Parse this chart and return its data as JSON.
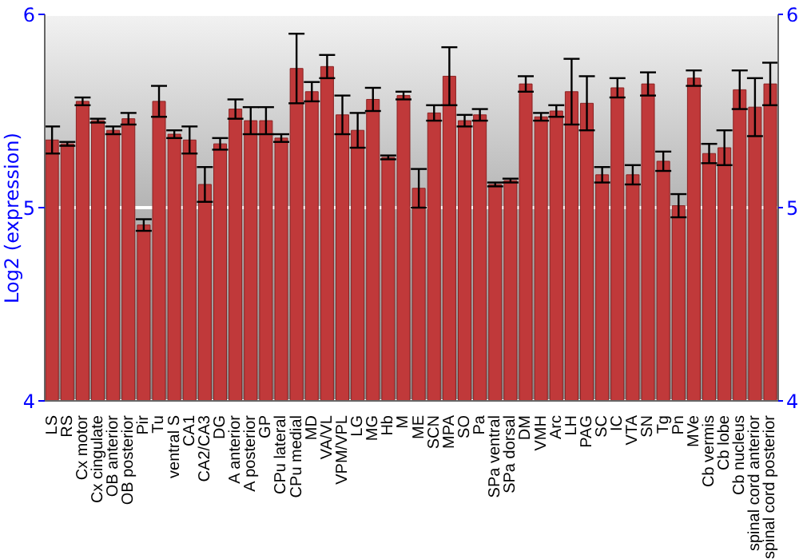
{
  "chart_data": {
    "type": "bar",
    "ylabel": "Log2 (expression)",
    "categories": [
      "LS",
      "RS",
      "Cx motor",
      "Cx cingulate",
      "OB anterior",
      "OB posterior",
      "Pir",
      "Tu",
      "ventral S",
      "CA1",
      "CA2/CA3",
      "DG",
      "A anterior",
      "A posterior",
      "GP",
      "CPu lateral",
      "CPu medial",
      "MD",
      "VA/VL",
      "VPM/VPL",
      "LG",
      "MG",
      "Hb",
      "M",
      "ME",
      "SCN",
      "MPA",
      "SO",
      "Pa",
      "SPa ventral",
      "SPa dorsal",
      "DM",
      "VMH",
      "Arc",
      "LH",
      "PAG",
      "SC",
      "IC",
      "VTA",
      "SN",
      "Tg",
      "Pn",
      "MVe",
      "Cb vermis",
      "Cb lobe",
      "Cb nucleus",
      "spinal cord anterior",
      "spinal cord posterior"
    ],
    "series": [
      {
        "color": "#c0393a",
        "values": [
          5.35,
          5.33,
          5.55,
          5.45,
          5.4,
          5.46,
          4.91,
          5.55,
          5.38,
          5.35,
          5.12,
          5.33,
          5.51,
          5.45,
          5.45,
          5.36,
          5.72,
          5.6,
          5.73,
          5.48,
          5.4,
          5.56,
          5.26,
          5.58,
          5.1,
          5.49,
          5.68,
          5.45,
          5.48,
          5.12,
          5.14,
          5.64,
          5.47,
          5.5,
          5.6,
          5.54,
          5.17,
          5.62,
          5.17,
          5.64,
          5.24,
          5.01,
          5.67,
          5.28,
          5.31,
          5.61,
          5.52,
          5.64
        ],
        "errors": [
          0.07,
          0.01,
          0.02,
          0.01,
          0.02,
          0.03,
          0.03,
          0.08,
          0.02,
          0.07,
          0.09,
          0.03,
          0.05,
          0.07,
          0.07,
          0.02,
          0.18,
          0.05,
          0.06,
          0.1,
          0.09,
          0.06,
          0.01,
          0.02,
          0.1,
          0.04,
          0.15,
          0.03,
          0.03,
          0.01,
          0.01,
          0.04,
          0.02,
          0.03,
          0.17,
          0.14,
          0.04,
          0.05,
          0.05,
          0.06,
          0.05,
          0.06,
          0.04,
          0.05,
          0.09,
          0.1,
          0.15,
          0.11
        ]
      }
    ],
    "ylim": [
      4,
      6
    ],
    "yticks": [
      4,
      5,
      6
    ],
    "y2lim": [
      4,
      6
    ],
    "y2ticks": [
      4,
      5,
      6
    ],
    "grid": "y"
  }
}
